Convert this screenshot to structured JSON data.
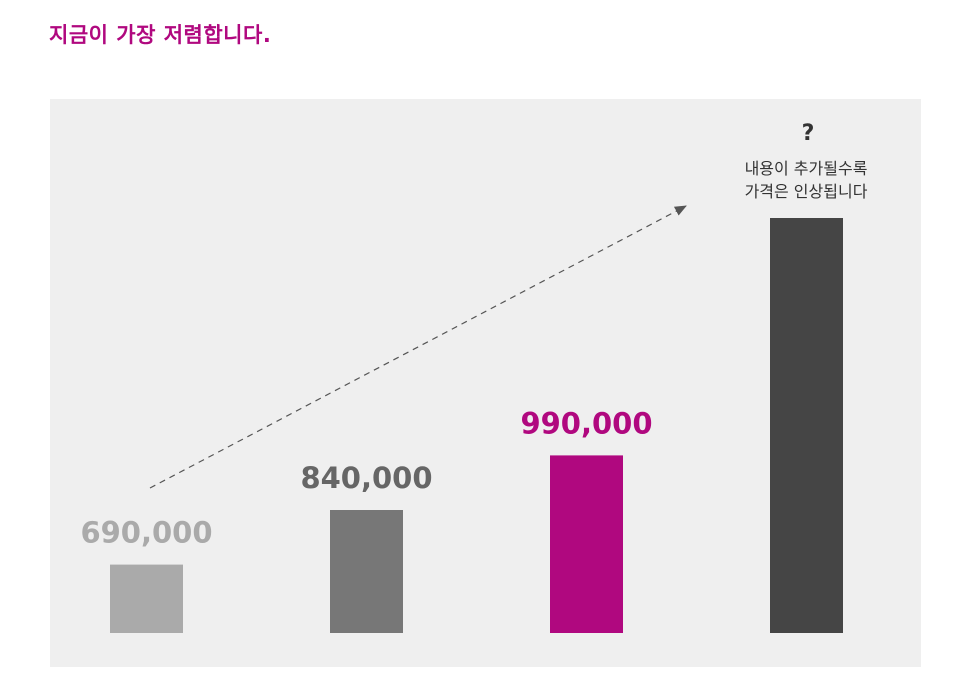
{
  "headline": "지금이 가장 저렴합니다.",
  "chart_data": {
    "type": "bar",
    "categories": [
      "",
      "",
      "",
      ""
    ],
    "values": [
      690000,
      840000,
      990000,
      null
    ],
    "value_labels": [
      "690,000",
      "840,000",
      "990,000",
      ""
    ],
    "bar_colors": [
      "#aaaaaa",
      "#777777",
      "#b0087f",
      "#454545"
    ],
    "label_colors": [
      "#aaaaaa",
      "#666666",
      "#b0087f",
      "#333333"
    ],
    "title": "",
    "xlabel": "",
    "ylabel": "",
    "grid": false,
    "legend": "none",
    "trend_arrow": "dashed, rising toward the last bar",
    "annotation": {
      "mark": "?",
      "lines": [
        "내용이 추가될수록",
        "가격은 인상됩니다"
      ]
    }
  },
  "colors": {
    "accent": "#b0087f",
    "panel_background": "#efefef",
    "arrow": "#555555"
  }
}
